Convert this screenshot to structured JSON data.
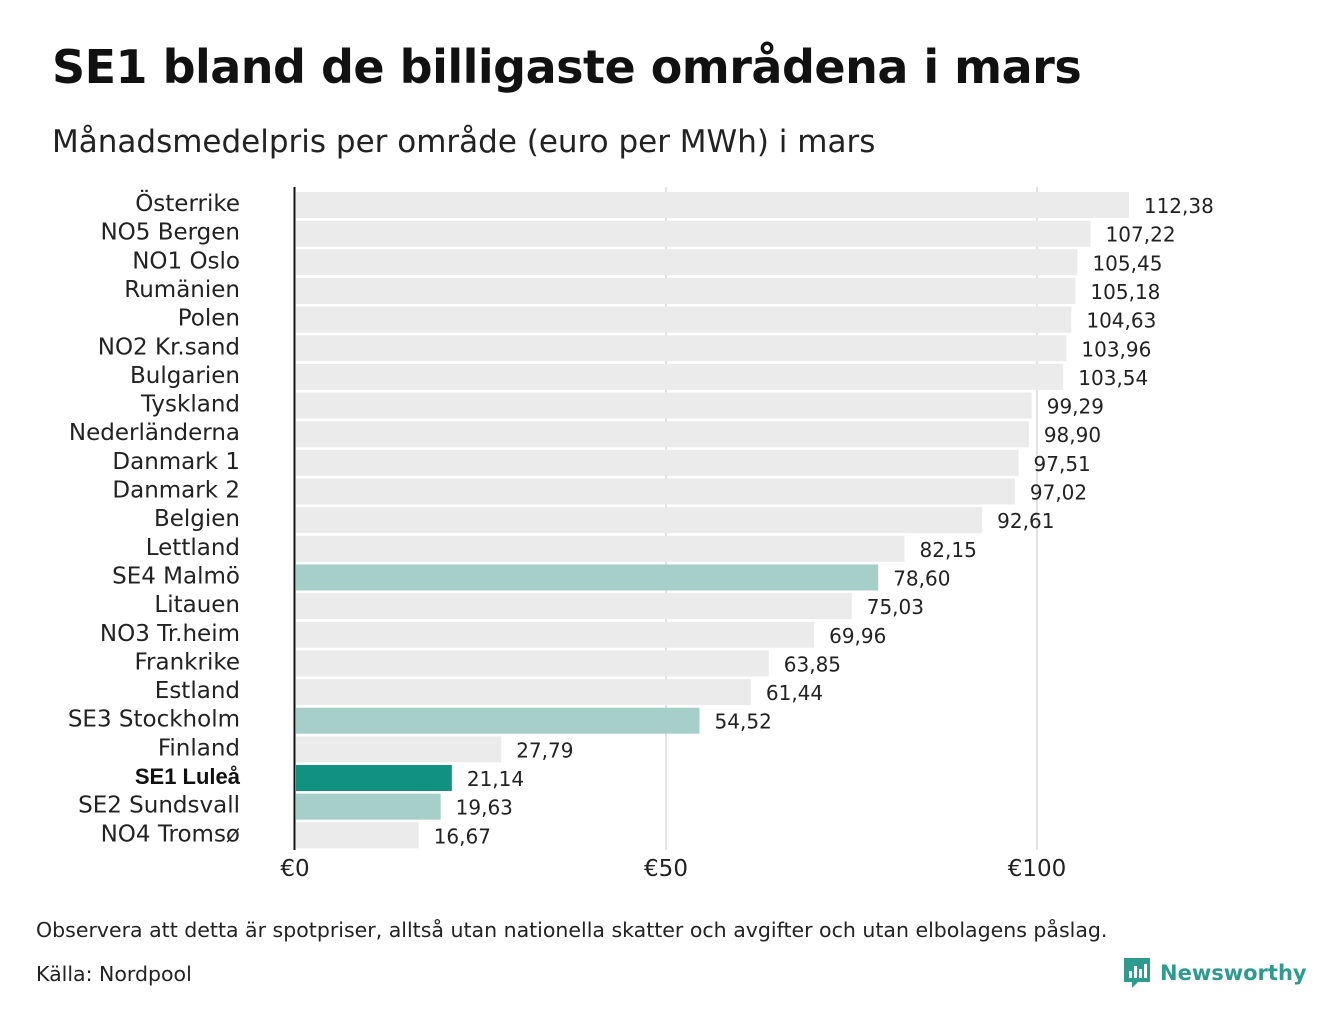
{
  "title": "SE1 bland de billigaste områdena i mars",
  "subtitle": "Månadsmedelpris per område (euro per MWh) i mars",
  "note": "Observera att detta är spotpriser, alltså utan nationella skatter och avgifter och utan elbolagens påslag.",
  "source": "Källa: Nordpool",
  "brand": "Newsworthy",
  "colors": {
    "default_bar": "#ebebeb",
    "se_bar": "#a5cfc8",
    "highlight_bar": "#11917f",
    "gridline": "#cfcfcf",
    "axis": "#111111",
    "brand": "#2e9b8f"
  },
  "chart_data": {
    "type": "bar",
    "orientation": "horizontal",
    "title": "SE1 bland de billigaste områdena i mars",
    "subtitle": "Månadsmedelpris per område (euro per MWh) i mars",
    "xlabel": "",
    "ylabel": "",
    "xlim": [
      0,
      116
    ],
    "xticks": [
      0,
      50,
      100
    ],
    "xtick_labels": [
      "€0",
      "€50",
      "€100"
    ],
    "grid": true,
    "categories": [
      "Österrike",
      "NO5 Bergen",
      "NO1 Oslo",
      "Rumänien",
      "Polen",
      "NO2 Kr.sand",
      "Bulgarien",
      "Tyskland",
      "Nederländerna",
      "Danmark  1",
      "Danmark  2",
      "Belgien",
      "Lettland",
      "SE4  Malmö",
      "Litauen",
      "NO3 Tr.heim",
      "Frankrike",
      "Estland",
      "SE3  Stockholm",
      "Finland",
      "SE1 Luleå",
      "SE2  Sundsvall",
      "NO4 Tromsø"
    ],
    "values": [
      112.38,
      107.22,
      105.45,
      105.18,
      104.63,
      103.96,
      103.54,
      99.29,
      98.9,
      97.51,
      97.02,
      92.61,
      82.15,
      78.6,
      75.03,
      69.96,
      63.85,
      61.44,
      54.52,
      27.79,
      21.14,
      19.63,
      16.67
    ],
    "value_labels": [
      "112,38",
      "107,22",
      "105,45",
      "105,18",
      "104,63",
      "103,96",
      "103,54",
      "99,29",
      "98,90",
      "97,51",
      "97,02",
      "92,61",
      "82,15",
      "78,60",
      "75,03",
      "69,96",
      "63,85",
      "61,44",
      "54,52",
      "27,79",
      "21,14",
      "19,63",
      "16,67"
    ],
    "bar_styles": [
      "default",
      "default",
      "default",
      "default",
      "default",
      "default",
      "default",
      "default",
      "default",
      "default",
      "default",
      "default",
      "default",
      "se",
      "default",
      "default",
      "default",
      "default",
      "se",
      "default",
      "highlight",
      "se",
      "default"
    ]
  }
}
